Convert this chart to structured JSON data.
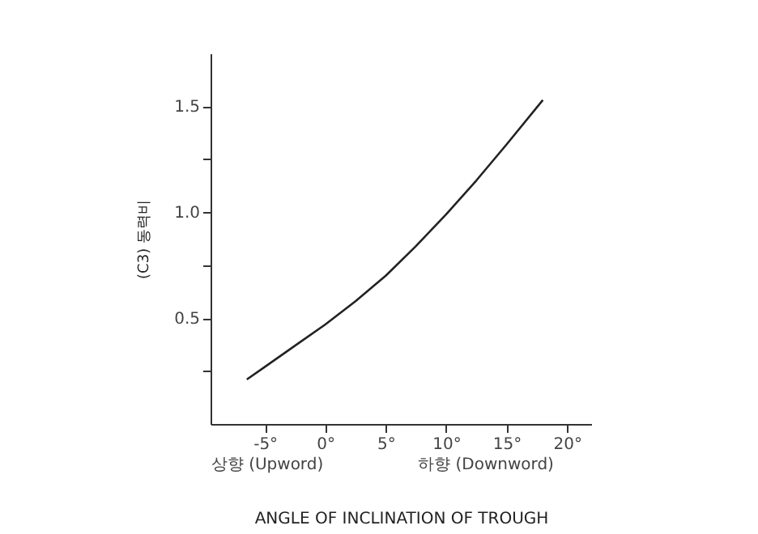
{
  "chart_data": {
    "type": "line",
    "xlabel": "ANGLE OF INCLINATION OF TROUGH",
    "ylabel": "(C3) 동력비",
    "x": [
      -6.5,
      -5,
      -2.5,
      0,
      2.5,
      5,
      7.5,
      10,
      12.5,
      15,
      18
    ],
    "series": [
      {
        "color": "#222222",
        "values": [
          0.21,
          0.27,
          0.37,
          0.47,
          0.58,
          0.7,
          0.84,
          0.99,
          1.15,
          1.32,
          1.53
        ]
      }
    ],
    "xlim": [
      -9.5,
      22
    ],
    "xticks": [
      {
        "value": -5,
        "label": "-5°"
      },
      {
        "value": 0,
        "label": "0°"
      },
      {
        "value": 5,
        "label": "5°"
      },
      {
        "value": 10,
        "label": "10°"
      },
      {
        "value": 15,
        "label": "15°"
      },
      {
        "value": 20,
        "label": "20°"
      }
    ],
    "ylim": [
      0,
      1.75
    ],
    "yticks": [
      {
        "value": 0.25,
        "label": null
      },
      0.5,
      {
        "value": 0.75,
        "label": null
      },
      {
        "value": 1,
        "label": "1.0"
      },
      {
        "value": 1.25,
        "label": null
      },
      1.5
    ],
    "annotations": [
      "상향 (Upword)",
      "하향 (Downword)"
    ],
    "grid": false,
    "marker": "none",
    "line_style": "solid"
  }
}
